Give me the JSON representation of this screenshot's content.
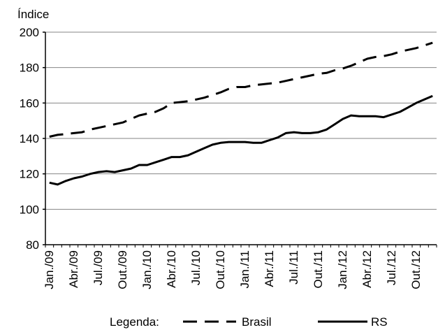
{
  "chart_data": {
    "type": "line",
    "ylabel": "Índice",
    "ylim": [
      80,
      200
    ],
    "yticks": [
      80,
      100,
      120,
      140,
      160,
      180,
      200
    ],
    "grid": "horizontal",
    "x_tick_labels": [
      "Jan./09",
      "Abr./09",
      "Jul./09",
      "Out./09",
      "Jan./10",
      "Abr./10",
      "Jul./10",
      "Out./10",
      "Jan./11",
      "Abr./11",
      "Jul./11",
      "Out./11",
      "Jan./12",
      "Abr./12",
      "Jul./12",
      "Out./12"
    ],
    "x": [
      "Jan./09",
      "Fev./09",
      "Mar./09",
      "Abr./09",
      "Mai./09",
      "Jun./09",
      "Jul./09",
      "Ago./09",
      "Set./09",
      "Out./09",
      "Nov./09",
      "Dez./09",
      "Jan./10",
      "Fev./10",
      "Mar./10",
      "Abr./10",
      "Mai./10",
      "Jun./10",
      "Jul./10",
      "Ago./10",
      "Set./10",
      "Out./10",
      "Nov./10",
      "Dez./10",
      "Jan./11",
      "Fev./11",
      "Mar./11",
      "Abr./11",
      "Mai./11",
      "Jun./11",
      "Jul./11",
      "Ago./11",
      "Set./11",
      "Out./11",
      "Nov./11",
      "Dez./11",
      "Jan./12",
      "Fev./12",
      "Mar./12",
      "Abr./12",
      "Mai./12",
      "Jun./12",
      "Jul./12",
      "Ago./12",
      "Set./12",
      "Out./12",
      "Nov./12",
      "Dez./12"
    ],
    "legend_position": "bottom",
    "legend_title": "Legenda:",
    "series": [
      {
        "name": "Brasil",
        "style": "dashed",
        "color": "#000000",
        "values": [
          141,
          142,
          142.5,
          143,
          143.5,
          145,
          146,
          147,
          148,
          149,
          151,
          153,
          154,
          155,
          157,
          160,
          160.5,
          161,
          162,
          163,
          164.5,
          166,
          168,
          169,
          169,
          170,
          170.5,
          171,
          171.5,
          172.5,
          173.5,
          174.5,
          175.5,
          176.5,
          177,
          178.5,
          179.5,
          181,
          183,
          185,
          186,
          186.5,
          187.5,
          189,
          190,
          191,
          192.5,
          194
        ]
      },
      {
        "name": "RS",
        "style": "solid",
        "color": "#000000",
        "values": [
          115,
          114,
          116,
          117.5,
          118.5,
          120,
          121,
          121.5,
          121,
          122,
          123,
          125,
          125,
          126.5,
          128,
          129.5,
          129.5,
          130.5,
          132.5,
          134.5,
          136.5,
          137.5,
          138,
          138,
          138,
          137.5,
          137.5,
          139,
          140.5,
          143,
          143.5,
          143,
          143,
          143.5,
          145,
          148,
          151,
          153,
          152.5,
          152.5,
          152.5,
          152,
          153.5,
          155,
          157.5,
          160,
          162,
          164
        ]
      }
    ]
  }
}
